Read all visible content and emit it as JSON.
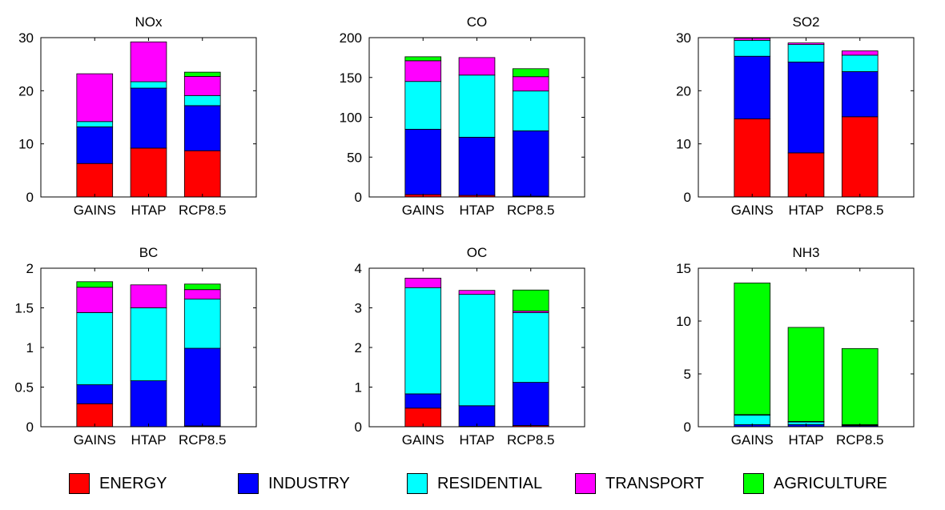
{
  "chart_data": [
    {
      "type": "bar",
      "stacked": true,
      "title": "NOx",
      "categories": [
        "GAINS",
        "HTAP",
        "RCP8.5"
      ],
      "ylim": [
        0,
        30
      ],
      "yticks": [
        0,
        10,
        20,
        30
      ],
      "ytick_labels": [
        "0",
        "10",
        "20",
        "30"
      ],
      "series": [
        {
          "name": "ENERGY",
          "values": [
            6.3,
            9.2,
            8.7
          ]
        },
        {
          "name": "INDUSTRY",
          "values": [
            6.9,
            11.3,
            8.5
          ]
        },
        {
          "name": "RESIDENTIAL",
          "values": [
            1.0,
            1.2,
            1.9
          ]
        },
        {
          "name": "TRANSPORT",
          "values": [
            9.0,
            7.5,
            3.6
          ]
        },
        {
          "name": "AGRICULTURE",
          "values": [
            0.0,
            0.0,
            0.8
          ]
        }
      ]
    },
    {
      "type": "bar",
      "stacked": true,
      "title": "CO",
      "categories": [
        "GAINS",
        "HTAP",
        "RCP8.5"
      ],
      "ylim": [
        0,
        200
      ],
      "yticks": [
        0,
        50,
        100,
        150,
        200
      ],
      "ytick_labels": [
        "0",
        "50",
        "100",
        "150",
        "200"
      ],
      "series": [
        {
          "name": "ENERGY",
          "values": [
            3,
            2,
            1
          ]
        },
        {
          "name": "INDUSTRY",
          "values": [
            82,
            73,
            82
          ]
        },
        {
          "name": "RESIDENTIAL",
          "values": [
            60,
            78,
            50
          ]
        },
        {
          "name": "TRANSPORT",
          "values": [
            26,
            22,
            18
          ]
        },
        {
          "name": "AGRICULTURE",
          "values": [
            5,
            0,
            10
          ]
        }
      ]
    },
    {
      "type": "bar",
      "stacked": true,
      "title": "SO2",
      "categories": [
        "GAINS",
        "HTAP",
        "RCP8.5"
      ],
      "ylim": [
        0,
        30
      ],
      "yticks": [
        0,
        10,
        20,
        30
      ],
      "ytick_labels": [
        "0",
        "10",
        "20",
        "30"
      ],
      "series": [
        {
          "name": "ENERGY",
          "values": [
            14.7,
            8.3,
            15.1
          ]
        },
        {
          "name": "INDUSTRY",
          "values": [
            11.8,
            17.1,
            8.5
          ]
        },
        {
          "name": "RESIDENTIAL",
          "values": [
            3.0,
            3.3,
            3.1
          ]
        },
        {
          "name": "TRANSPORT",
          "values": [
            0.4,
            0.3,
            0.8
          ]
        },
        {
          "name": "AGRICULTURE",
          "values": [
            0.0,
            0.0,
            0.0
          ]
        }
      ]
    },
    {
      "type": "bar",
      "stacked": true,
      "title": "BC",
      "categories": [
        "GAINS",
        "HTAP",
        "RCP8.5"
      ],
      "ylim": [
        0,
        2
      ],
      "yticks": [
        0,
        0.5,
        1,
        1.5,
        2
      ],
      "ytick_labels": [
        "0",
        "0.5",
        "1",
        "1.5",
        "2"
      ],
      "series": [
        {
          "name": "ENERGY",
          "values": [
            0.29,
            0.0,
            0.01
          ]
        },
        {
          "name": "INDUSTRY",
          "values": [
            0.24,
            0.58,
            0.98
          ]
        },
        {
          "name": "RESIDENTIAL",
          "values": [
            0.91,
            0.92,
            0.62
          ]
        },
        {
          "name": "TRANSPORT",
          "values": [
            0.32,
            0.29,
            0.12
          ]
        },
        {
          "name": "AGRICULTURE",
          "values": [
            0.07,
            0.0,
            0.07
          ]
        }
      ]
    },
    {
      "type": "bar",
      "stacked": true,
      "title": "OC",
      "categories": [
        "GAINS",
        "HTAP",
        "RCP8.5"
      ],
      "ylim": [
        0,
        4
      ],
      "yticks": [
        0,
        1,
        2,
        3,
        4
      ],
      "ytick_labels": [
        "0",
        "1",
        "2",
        "3",
        "4"
      ],
      "series": [
        {
          "name": "ENERGY",
          "values": [
            0.47,
            0.01,
            0.03
          ]
        },
        {
          "name": "INDUSTRY",
          "values": [
            0.36,
            0.52,
            1.09
          ]
        },
        {
          "name": "RESIDENTIAL",
          "values": [
            2.68,
            2.81,
            1.76
          ]
        },
        {
          "name": "TRANSPORT",
          "values": [
            0.24,
            0.1,
            0.04
          ]
        },
        {
          "name": "AGRICULTURE",
          "values": [
            0.0,
            0.0,
            0.53
          ]
        }
      ]
    },
    {
      "type": "bar",
      "stacked": true,
      "title": "NH3",
      "categories": [
        "GAINS",
        "HTAP",
        "RCP8.5"
      ],
      "ylim": [
        0,
        15
      ],
      "yticks": [
        0,
        5,
        10,
        15
      ],
      "ytick_labels": [
        "0",
        "5",
        "10",
        "15"
      ],
      "series": [
        {
          "name": "ENERGY",
          "values": [
            0.0,
            0.0,
            0.0
          ]
        },
        {
          "name": "INDUSTRY",
          "values": [
            0.2,
            0.2,
            0.1
          ]
        },
        {
          "name": "RESIDENTIAL",
          "values": [
            0.9,
            0.25,
            0.05
          ]
        },
        {
          "name": "TRANSPORT",
          "values": [
            0.05,
            0.05,
            0.05
          ]
        },
        {
          "name": "AGRICULTURE",
          "values": [
            12.45,
            8.9,
            7.2
          ]
        }
      ]
    }
  ],
  "legend": {
    "items": [
      {
        "label": "ENERGY",
        "color": "#ff0000"
      },
      {
        "label": "INDUSTRY",
        "color": "#0000ff"
      },
      {
        "label": "RESIDENTIAL",
        "color": "#00ffff"
      },
      {
        "label": "TRANSPORT",
        "color": "#ff00ff"
      },
      {
        "label": "AGRICULTURE",
        "color": "#00ff00"
      }
    ]
  }
}
